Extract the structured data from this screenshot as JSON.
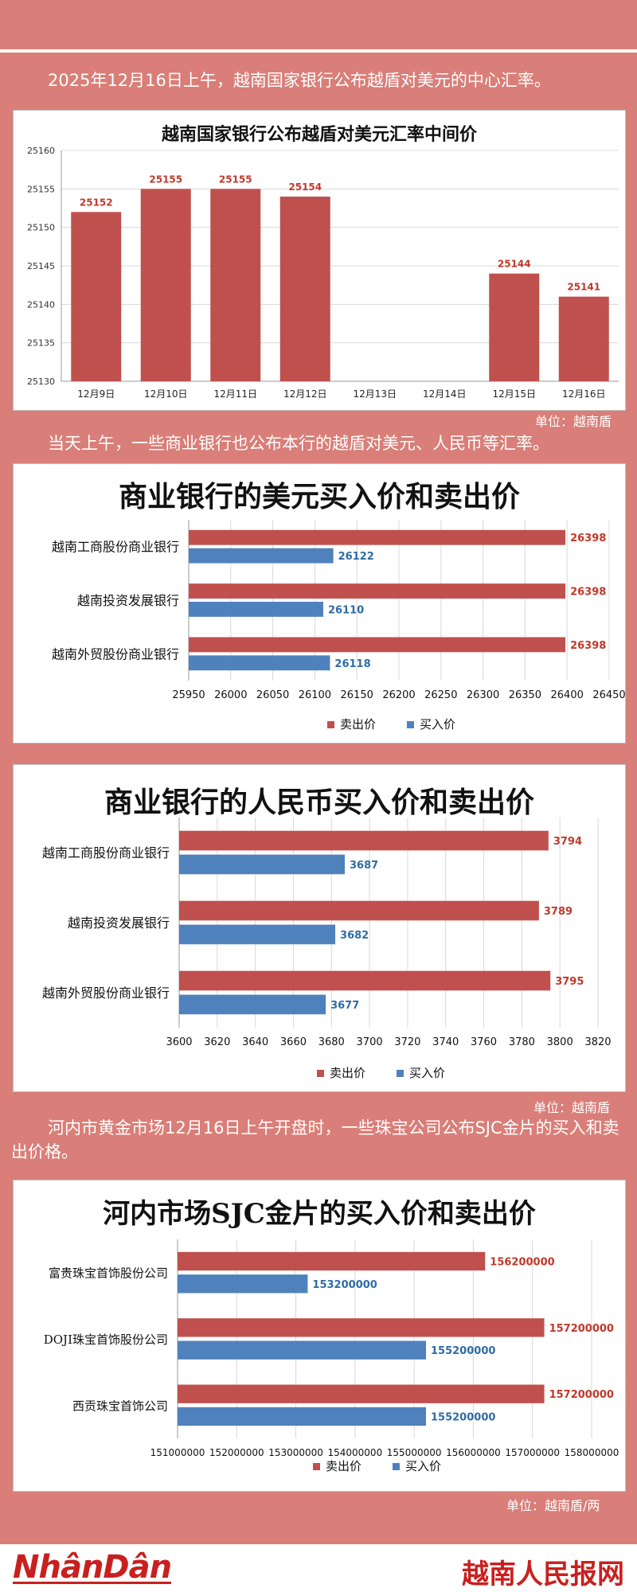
{
  "intro": "2025年12月16日上午，越南国家银行公布越盾对美元的中心汇率。",
  "unit1": "单位：越南盾",
  "para2": "当天上午，一些商业银行也公布本行的越盾对美元、人民币等汇率。",
  "unit2": "单位：越南盾",
  "para3": "河内市黄金市场12月16日上午开盘时，一些珠宝公司公布SJC金片的买入和卖出价格。",
  "unit3": "单位：越南盾/两",
  "footer": {
    "left_logo": "NhânDân",
    "right_logo": "越南人民报网"
  },
  "chart_data": [
    {
      "type": "bar",
      "title": "越南国家银行公布越盾对美元汇率中间价",
      "categories": [
        "12月9日",
        "12月10日",
        "12月11日",
        "12月12日",
        "12月13日",
        "12月14日",
        "12月15日",
        "12月16日"
      ],
      "values": [
        25152,
        25155,
        25155,
        25154,
        null,
        null,
        25144,
        25141
      ],
      "ylim": [
        25130,
        25160
      ],
      "yticks": [
        25130,
        25135,
        25140,
        25145,
        25150,
        25155,
        25160
      ],
      "grid": true,
      "colors": {
        "bar": "#c0504d"
      }
    },
    {
      "type": "bar",
      "orientation": "horizontal",
      "title": "商业银行的美元买入价和卖出价",
      "categories": [
        "越南工商股份商业银行",
        "越南投资发展银行",
        "越南外贸股份商业银行"
      ],
      "series": [
        {
          "name": "卖出价",
          "values": [
            26398,
            26398,
            26398
          ],
          "color": "#c0504d"
        },
        {
          "name": "买入价",
          "values": [
            26122,
            26110,
            26118
          ],
          "color": "#4f81bd"
        }
      ],
      "xlim": [
        25950,
        26450
      ],
      "xticks": [
        25950,
        26000,
        26050,
        26100,
        26150,
        26200,
        26250,
        26300,
        26350,
        26400,
        26450
      ],
      "legend": "bottom",
      "grid": true
    },
    {
      "type": "bar",
      "orientation": "horizontal",
      "title": "商业银行的人民币买入价和卖出价",
      "categories": [
        "越南工商股份商业银行",
        "越南投资发展银行",
        "越南外贸股份商业银行"
      ],
      "series": [
        {
          "name": "卖出价",
          "values": [
            3794,
            3789,
            3795
          ],
          "color": "#c0504d"
        },
        {
          "name": "买入价",
          "values": [
            3687,
            3682,
            3677
          ],
          "color": "#4f81bd"
        }
      ],
      "xlim": [
        3600,
        3820
      ],
      "xticks": [
        3600,
        3620,
        3640,
        3660,
        3680,
        3700,
        3720,
        3740,
        3760,
        3780,
        3800,
        3820
      ],
      "legend": "bottom",
      "grid": true
    },
    {
      "type": "bar",
      "orientation": "horizontal",
      "title": "河内市场SJC金片的买入价和卖出价",
      "categories": [
        "富贵珠宝首饰股份公司",
        "DOJI珠宝首饰股份公司",
        "西贡珠宝首饰公司"
      ],
      "series": [
        {
          "name": "卖出价",
          "values": [
            156200000,
            157200000,
            157200000
          ],
          "color": "#c0504d"
        },
        {
          "name": "买入价",
          "values": [
            153200000,
            155200000,
            155200000
          ],
          "color": "#4f81bd"
        }
      ],
      "xlim": [
        151000000,
        158000000
      ],
      "xticks": [
        151000000,
        152000000,
        153000000,
        154000000,
        155000000,
        156000000,
        157000000,
        158000000
      ],
      "legend": "bottom",
      "grid": true
    }
  ]
}
